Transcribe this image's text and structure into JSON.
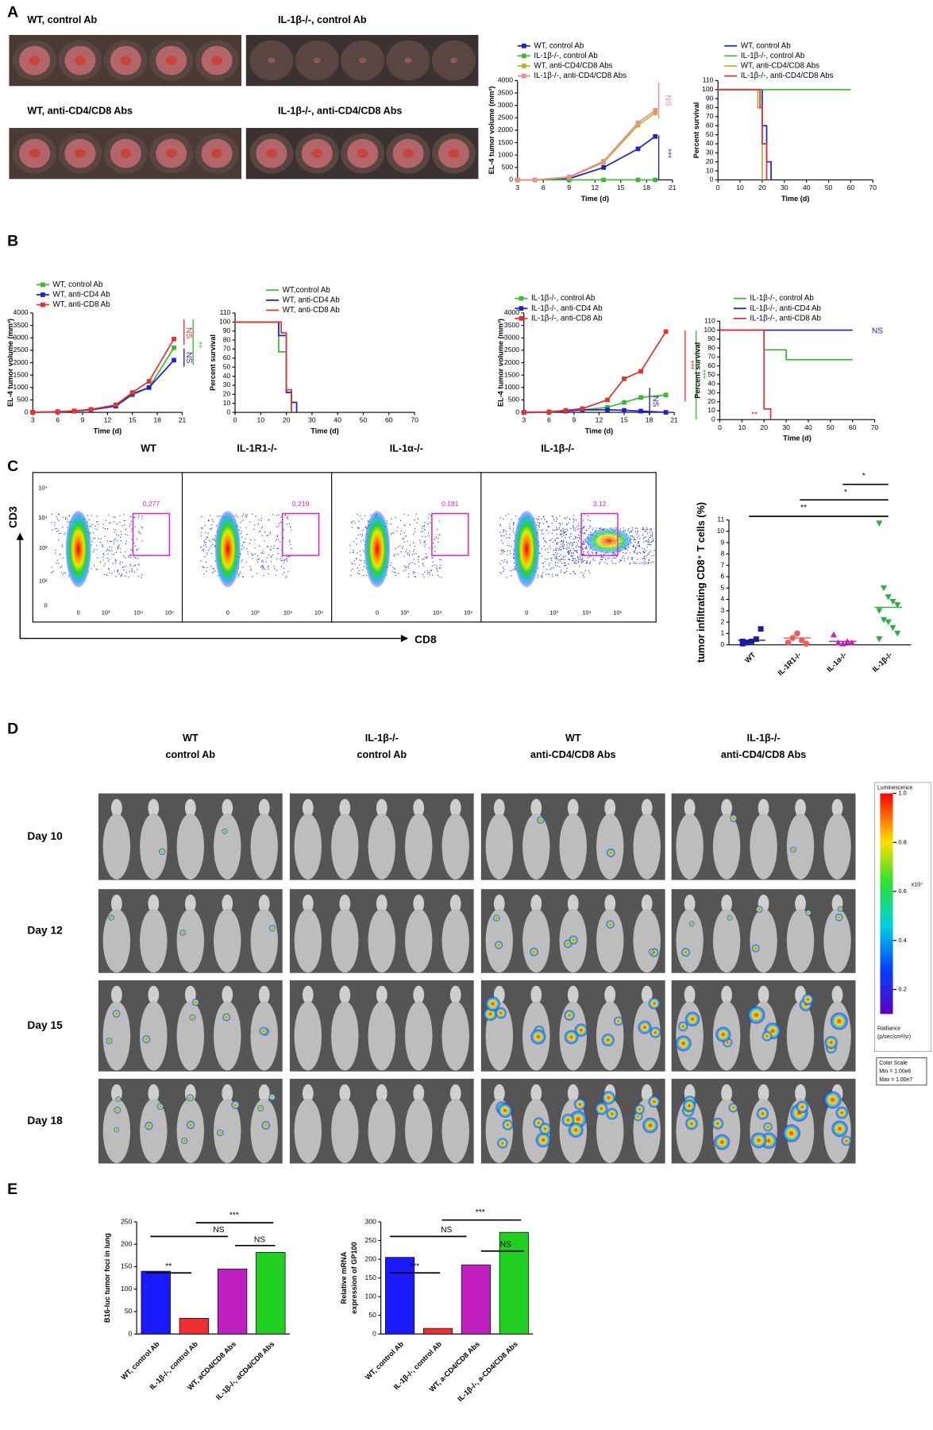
{
  "panel_letters": [
    "A",
    "B",
    "C",
    "D",
    "E"
  ],
  "photo_labels": [
    "WT, control Ab",
    "IL-1β-/-, control Ab",
    "WT, anti-CD4/CD8 Abs",
    "IL-1β-/-, anti-CD4/CD8 Abs"
  ],
  "flow": {
    "titles": [
      "WT",
      "IL-1R1-/-",
      "IL-1α-/-",
      "IL-1β-/-"
    ],
    "gates": [
      "0.277",
      "0.219",
      "0.181",
      "3.12"
    ],
    "xticks": [
      "0",
      "10³",
      "10⁴",
      "10⁵"
    ],
    "yticks": [
      "10⁵",
      "10⁴",
      "10³",
      "10²",
      "0"
    ],
    "xlabel": "CD8",
    "ylabel": "CD3"
  },
  "imaging": {
    "headers": [
      [
        "WT",
        "control Ab"
      ],
      [
        "IL-1β-/-",
        "control Ab"
      ],
      [
        "WT",
        "anti-CD4/CD8 Abs"
      ],
      [
        "IL-1β-/-",
        "anti-CD4/CD8 Abs"
      ]
    ],
    "rows": [
      "Day 10",
      "Day 12",
      "Day 15",
      "Day 18"
    ],
    "colorbar": {
      "title": "Luminescence",
      "lim": [
        0.1,
        1
      ],
      "ticks": [
        {
          "value": 1,
          "label": "1.0"
        },
        {
          "value": 0.8,
          "label": "0.8"
        },
        {
          "value": 0.6,
          "label": "0.6"
        },
        {
          "value": 0.4,
          "label": "0.4"
        },
        {
          "value": 0.2,
          "label": "0.2"
        }
      ],
      "multiplier": "x10⁷",
      "unit": [
        "Radiance",
        "(p/sec/cm²/sr)"
      ],
      "scale": [
        "Color Scale",
        "Min = 1.00e6",
        "Max = 1.00e7"
      ]
    }
  },
  "chart_data": [
    {
      "type": "line",
      "xlabel": "Time (d)",
      "ylabel": "EL-4 tumor volume (mm³)",
      "xlim": [
        3,
        21
      ],
      "xticks": [
        3,
        6,
        9,
        12,
        15,
        18,
        21
      ],
      "ylim": [
        0,
        4000
      ],
      "yticks": [
        0,
        500,
        1000,
        1500,
        2000,
        2500,
        3000,
        3500,
        4000
      ],
      "x": [
        3,
        5,
        9,
        13,
        17,
        19
      ],
      "series": [
        {
          "name": "WT, control Ab",
          "color": "#1f1fd6",
          "values": [
            0,
            0,
            50,
            500,
            1250,
            1750
          ]
        },
        {
          "name": "IL-1β-/-, control Ab",
          "color": "#3cb832",
          "values": [
            0,
            0,
            0,
            0,
            0,
            0
          ]
        },
        {
          "name": "WT, anti-CD4/CD8 Abs",
          "color": "#b8b52a",
          "values": [
            0,
            0,
            100,
            700,
            2200,
            2700
          ]
        },
        {
          "name": "IL-1β-/-, anti-CD4/CD8 Abs",
          "color": "#f28a8a",
          "values": [
            0,
            0,
            120,
            750,
            2300,
            2800
          ]
        }
      ],
      "annotations": [
        {
          "text": "NS",
          "color": "#f28a8a"
        },
        {
          "text": "***",
          "color": "#1f1fd6"
        }
      ]
    },
    {
      "type": "step",
      "xlabel": "Time (d)",
      "ylabel": "Percent survival",
      "xlim": [
        0,
        70
      ],
      "xticks": [
        0,
        10,
        20,
        30,
        40,
        50,
        60,
        70
      ],
      "ylim": [
        0,
        110
      ],
      "yticks": [
        0,
        10,
        20,
        30,
        40,
        50,
        60,
        70,
        80,
        90,
        100,
        110
      ],
      "series": [
        {
          "name": "WT, control Ab",
          "color": "#1f1fd6",
          "x": [
            0,
            20,
            22,
            24
          ],
          "values": [
            100,
            60,
            20,
            0
          ]
        },
        {
          "name": "IL-1β-/-, control Ab",
          "color": "#3cb832",
          "x": [
            0,
            60
          ],
          "values": [
            100,
            100
          ]
        },
        {
          "name": "WT, anti-CD4/CD8 Abs",
          "color": "#b8b52a",
          "x": [
            0,
            18,
            20
          ],
          "values": [
            100,
            80,
            0
          ]
        },
        {
          "name": "IL-1β-/-, anti-CD4/CD8 Abs",
          "color": "#e83030",
          "x": [
            0,
            19,
            20,
            22
          ],
          "values": [
            100,
            80,
            40,
            0
          ]
        }
      ],
      "annotations": []
    },
    {
      "type": "line",
      "xlabel": "Time (d)",
      "ylabel": "EL-4 tumor volume (mm³)",
      "xlim": [
        3,
        21
      ],
      "xticks": [
        3,
        6,
        9,
        12,
        15,
        18,
        21
      ],
      "ylim": [
        0,
        4000
      ],
      "yticks": [
        0,
        500,
        1000,
        1500,
        2000,
        2500,
        3000,
        3500,
        4000
      ],
      "x": [
        3,
        6,
        8,
        10,
        13,
        15,
        17,
        20
      ],
      "series": [
        {
          "name": "WT, control Ab",
          "color": "#3cb832",
          "values": [
            0,
            20,
            50,
            100,
            250,
            700,
            1000,
            2600
          ]
        },
        {
          "name": "WT, anti-CD4 Ab",
          "color": "#1f1fd6",
          "values": [
            0,
            20,
            50,
            100,
            250,
            750,
            1000,
            2100
          ]
        },
        {
          "name": "WT, anti-CD8 Ab",
          "color": "#e83030",
          "values": [
            0,
            30,
            60,
            120,
            300,
            800,
            1250,
            2950
          ]
        }
      ],
      "annotations": [
        {
          "text": "NS",
          "color": "#e83030"
        },
        {
          "text": "NS",
          "color": "#1f1fd6"
        },
        {
          "text": "**",
          "color": "#3cb832"
        }
      ]
    },
    {
      "type": "step",
      "xlabel": "Time (d)",
      "ylabel": "Percent survival",
      "xlim": [
        0,
        70
      ],
      "xticks": [
        0,
        10,
        20,
        30,
        40,
        50,
        60,
        70
      ],
      "ylim": [
        0,
        110
      ],
      "yticks": [
        0,
        10,
        20,
        30,
        40,
        50,
        60,
        70,
        80,
        90,
        100,
        110
      ],
      "series": [
        {
          "name": "WT,control Ab",
          "color": "#3cb832",
          "x": [
            0,
            17,
            20,
            22
          ],
          "values": [
            100,
            67,
            22,
            0
          ]
        },
        {
          "name": "WT, anti-CD4 Ab",
          "color": "#1f1fd6",
          "x": [
            0,
            17,
            20,
            22,
            24
          ],
          "values": [
            100,
            85,
            22,
            11,
            0
          ]
        },
        {
          "name": "WT,  anti-CD8 Ab",
          "color": "#e83030",
          "x": [
            0,
            18,
            20,
            22
          ],
          "values": [
            100,
            88,
            25,
            0
          ]
        }
      ],
      "annotations": []
    },
    {
      "type": "line",
      "xlabel": "Time (d)",
      "ylabel": "EL-4 tumor volume (mm³)",
      "xlim": [
        3,
        21
      ],
      "xticks": [
        3,
        6,
        9,
        12,
        15,
        18,
        21
      ],
      "ylim": [
        0,
        4000
      ],
      "yticks": [
        0,
        500,
        1000,
        1500,
        2000,
        2500,
        3000,
        3500,
        4000
      ],
      "x": [
        3,
        6,
        8,
        10,
        13,
        15,
        17,
        20
      ],
      "series": [
        {
          "name": "IL-1β-/-, control Ab",
          "color": "#3cb832",
          "values": [
            0,
            10,
            50,
            100,
            200,
            400,
            600,
            700
          ]
        },
        {
          "name": "IL-1β-/-, anti-CD4 Ab",
          "color": "#1f1fd6",
          "values": [
            0,
            10,
            50,
            100,
            100,
            80,
            50,
            0
          ]
        },
        {
          "name": "IL-1β-/-, anti-CD8 Ab",
          "color": "#e83030",
          "values": [
            0,
            20,
            80,
            150,
            500,
            1350,
            1650,
            3250
          ]
        }
      ],
      "annotations": [
        {
          "text": "***",
          "color": "#e83030"
        },
        {
          "text": "***",
          "color": "#3cb832"
        },
        {
          "text": "NS",
          "color": "#1f1fd6"
        }
      ]
    },
    {
      "type": "step",
      "xlabel": "Time (d)",
      "ylabel": "Percent survival",
      "xlim": [
        0,
        70
      ],
      "xticks": [
        0,
        10,
        20,
        30,
        40,
        50,
        60,
        70
      ],
      "ylim": [
        0,
        110
      ],
      "yticks": [
        0,
        10,
        20,
        30,
        40,
        50,
        60,
        70,
        80,
        90,
        100,
        110
      ],
      "series": [
        {
          "name": "IL-1β-/-, control Ab",
          "color": "#3cb832",
          "x": [
            0,
            20,
            30,
            60
          ],
          "values": [
            100,
            78,
            67,
            67
          ]
        },
        {
          "name": "IL-1β-/-, anti-CD4 Ab",
          "color": "#1f1fd6",
          "x": [
            0,
            60
          ],
          "values": [
            100,
            100
          ]
        },
        {
          "name": "IL-1β-/-, anti-CD8 Ab",
          "color": "#e83030",
          "x": [
            0,
            20,
            23
          ],
          "values": [
            100,
            12,
            0
          ]
        }
      ],
      "annotations": [
        {
          "text": "NS",
          "color": "#1f1fd6"
        },
        {
          "text": "**",
          "color": "#e83030"
        }
      ]
    },
    {
      "type": "strip",
      "ylabel": "tumor infiltrating CD8⁺ T cells (%)",
      "categories": [
        "WT",
        "IL-1R1-/-",
        "IL-1α-/-",
        "IL-1β-/-"
      ],
      "ylim": [
        0,
        11
      ],
      "yticks": [
        0,
        1,
        2,
        3,
        4,
        5,
        6,
        7,
        8,
        9,
        10,
        11
      ],
      "colors": [
        "#1c1c9c",
        "#f05a5a",
        "#c020c0",
        "#28b040"
      ],
      "values": [
        [
          0.1,
          0.2,
          0.3,
          0.5,
          1.4,
          0.3,
          0.2
        ],
        [
          0.2,
          0.6,
          1.0,
          0.4,
          0.1
        ],
        [
          0.9,
          0.2,
          0.1,
          0.3,
          0.2
        ],
        [
          10.7,
          5.0,
          4.2,
          3.8,
          3.5,
          3.0,
          2.2,
          2.0,
          1.5,
          1.0,
          0.5
        ]
      ],
      "means": [
        0.4,
        0.6,
        0.3,
        3.3
      ],
      "annotations": [
        {
          "text": "*",
          "color": "#000000"
        },
        {
          "text": "*",
          "color": "#000000"
        },
        {
          "text": "**",
          "color": "#000000"
        }
      ]
    },
    {
      "type": "bar",
      "ylabel": "B16-luc tumor foci in lung",
      "categories": [
        "WT, control Ab",
        "IL-1β-/-, control Ab",
        "WT, aCD4/CD8 Abs",
        "IL-1β-/-, aCD4/CD8 Abs"
      ],
      "values": [
        140,
        35,
        145,
        182
      ],
      "colors": [
        "#1a1aff",
        "#f03030",
        "#c020c0",
        "#20d020"
      ],
      "ylim": [
        0,
        250
      ],
      "yticks": [
        0,
        50,
        100,
        150,
        200,
        250
      ],
      "annotations": [
        {
          "text": "**",
          "color": "#000000"
        },
        {
          "text": "NS",
          "color": "#000000"
        },
        {
          "text": "***",
          "color": "#000000"
        },
        {
          "text": "NS",
          "color": "#000000"
        }
      ]
    },
    {
      "type": "bar",
      "ylabel": [
        "Relative mRNA",
        "expression of GP100"
      ],
      "categories": [
        "WT, control Ab",
        "IL-1β-/-, control Ab",
        "WT, a-CD4/CD8 Abs",
        "IL-1β-/-, a-CD4/CD8 Abs"
      ],
      "values": [
        205,
        15,
        185,
        272
      ],
      "colors": [
        "#1a1aff",
        "#f03030",
        "#c020c0",
        "#20d020"
      ],
      "ylim": [
        0,
        300
      ],
      "yticks": [
        0,
        50,
        100,
        150,
        200,
        250,
        300
      ],
      "annotations": [
        {
          "text": "***",
          "color": "#000000"
        },
        {
          "text": "NS",
          "color": "#000000"
        },
        {
          "text": "***",
          "color": "#000000"
        },
        {
          "text": "NS",
          "color": "#000000"
        }
      ]
    }
  ]
}
